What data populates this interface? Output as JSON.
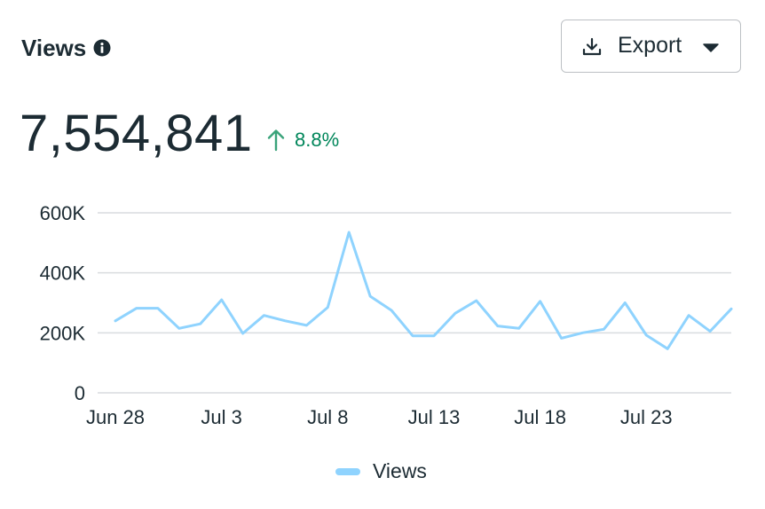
{
  "header": {
    "title": "Views",
    "info_icon": "info-circle-icon",
    "export_label": "Export",
    "export_icon": "download-icon",
    "dropdown_icon": "caret-down-icon"
  },
  "metric": {
    "value": "7,554,841",
    "change": "8.8%",
    "change_direction": "up",
    "change_color": "#00865a"
  },
  "colors": {
    "series": "#8fd3fe",
    "grid": "#d9dcdf",
    "text": "#1c2b33"
  },
  "chart_data": {
    "type": "line",
    "x": [
      "Jun 28",
      "Jun 29",
      "Jun 30",
      "Jul 1",
      "Jul 2",
      "Jul 3",
      "Jul 4",
      "Jul 5",
      "Jul 6",
      "Jul 7",
      "Jul 8",
      "Jul 9",
      "Jul 10",
      "Jul 11",
      "Jul 12",
      "Jul 13",
      "Jul 14",
      "Jul 15",
      "Jul 16",
      "Jul 17",
      "Jul 18",
      "Jul 19",
      "Jul 20",
      "Jul 21",
      "Jul 22",
      "Jul 23",
      "Jul 24",
      "Jul 25",
      "Jul 26",
      "Jul 27"
    ],
    "xticks": [
      "Jun 28",
      "Jul 3",
      "Jul 8",
      "Jul 13",
      "Jul 18",
      "Jul 23"
    ],
    "yticks": [
      "0",
      "200K",
      "400K",
      "600K"
    ],
    "ylim": [
      0,
      600000
    ],
    "series": [
      {
        "name": "Views",
        "values": [
          240000,
          282000,
          282000,
          215000,
          230000,
          310000,
          198000,
          258000,
          240000,
          225000,
          285000,
          535000,
          322000,
          275000,
          190000,
          190000,
          265000,
          307000,
          223000,
          215000,
          305000,
          182000,
          200000,
          212000,
          300000,
          192000,
          147000,
          258000,
          205000,
          280000
        ]
      }
    ],
    "grid": true,
    "legend": "bottom-center"
  }
}
